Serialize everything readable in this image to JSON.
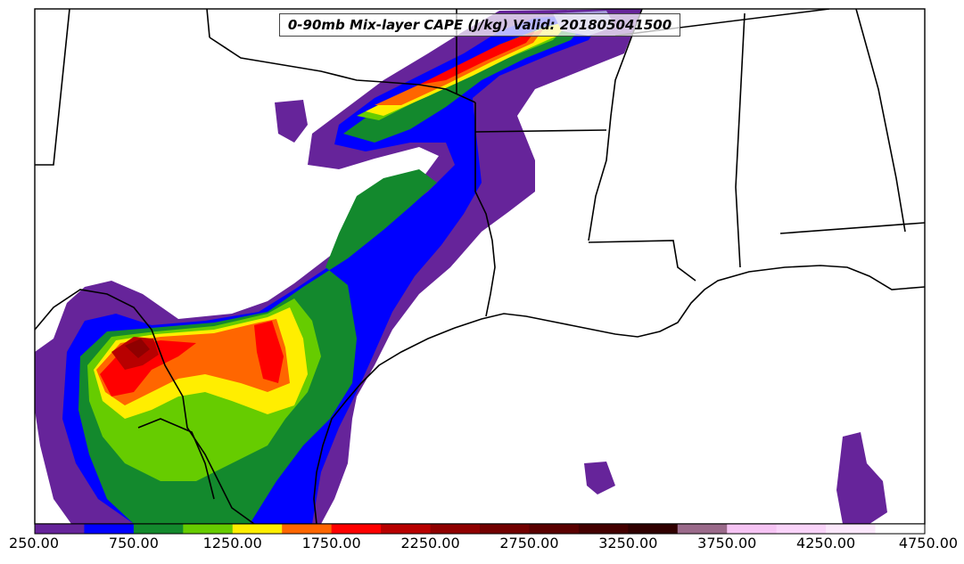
{
  "title": "0-90mb Mix-layer CAPE (J/kg) Valid: 201805041500",
  "colorbar": {
    "colors": [
      "#66249a",
      "#0000ff",
      "#13892d",
      "#66cc00",
      "#ffee00",
      "#ff6600",
      "#ff0000",
      "#b80000",
      "#8f0000",
      "#720000",
      "#5a0000",
      "#440000",
      "#300000",
      "#9a6a8a",
      "#f6c4f4",
      "#fad4fa",
      "#fce8fc",
      "#ffffff"
    ],
    "tick_labels": [
      "250.00",
      "750.00",
      "1250.00",
      "1750.00",
      "2250.00",
      "2750.00",
      "3250.00",
      "3750.00",
      "4250.00",
      "4750.00"
    ]
  }
}
